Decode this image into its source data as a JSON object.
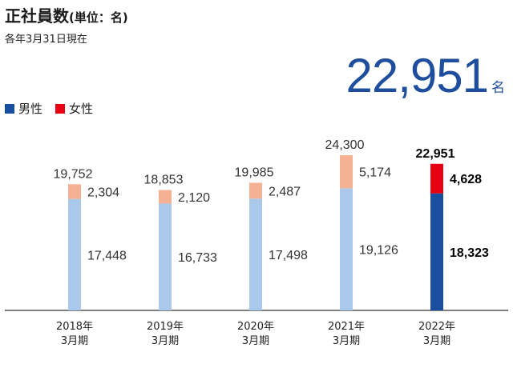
{
  "header": {
    "title": "正社員数",
    "title_unit": "(単位：名)",
    "subtitle": "各年3月31日現在"
  },
  "total": {
    "value": "22,951",
    "suffix": "名"
  },
  "legend": [
    {
      "label": "男性",
      "color": "#1a4fa0"
    },
    {
      "label": "女性",
      "color": "#e60012"
    }
  ],
  "chart_data": {
    "type": "bar",
    "stacked": true,
    "categories": [
      "2018年\n3月期",
      "2019年\n3月期",
      "2020年\n3月期",
      "2021年\n3月期",
      "2022年\n3月期"
    ],
    "series": [
      {
        "name": "男性",
        "values": [
          17448,
          16733,
          17498,
          19126,
          18323
        ]
      },
      {
        "name": "女性",
        "values": [
          2304,
          2120,
          2487,
          5174,
          4628
        ]
      }
    ],
    "totals": [
      19752,
      18853,
      19985,
      24300,
      22951
    ],
    "labels": {
      "male": [
        "17,448",
        "16,733",
        "17,498",
        "19,126",
        "18,323"
      ],
      "female": [
        "2,304",
        "2,120",
        "2,487",
        "5,174",
        "4,628"
      ],
      "total": [
        "19,752",
        "18,853",
        "19,985",
        "24,300",
        "22,951"
      ]
    },
    "highlight_index": 4,
    "colors": {
      "male": "#a9c8ea",
      "female": "#f4b194",
      "male_highlight": "#1a4fa0",
      "female_highlight": "#e60012",
      "axis": "#555555"
    },
    "ylim": [
      0,
      24300
    ]
  }
}
